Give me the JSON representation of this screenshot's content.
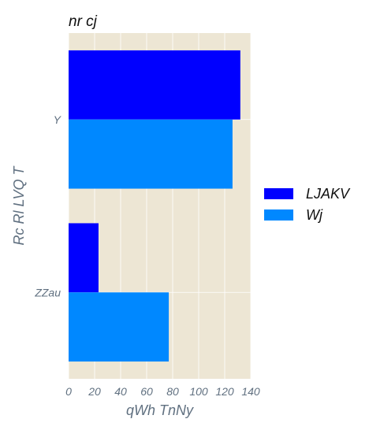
{
  "chart_data": {
    "type": "bar",
    "orientation": "horizontal",
    "title": "nr cj",
    "xlabel": "qWh TnNy",
    "ylabel": "Rc Rl LVQ T",
    "categories": [
      "Y",
      "ZZau"
    ],
    "series": [
      {
        "name": "LJAKV",
        "values": [
          132,
          23
        ],
        "color": "#0000ff"
      },
      {
        "name": "Wj",
        "values": [
          126,
          77
        ],
        "color": "#0088ff"
      }
    ],
    "xlim": [
      0,
      140
    ],
    "xticks": [
      0,
      20,
      40,
      60,
      80,
      100,
      120,
      140
    ],
    "grid": true,
    "legend_position": "right",
    "plot_background": "#ede6d4"
  }
}
